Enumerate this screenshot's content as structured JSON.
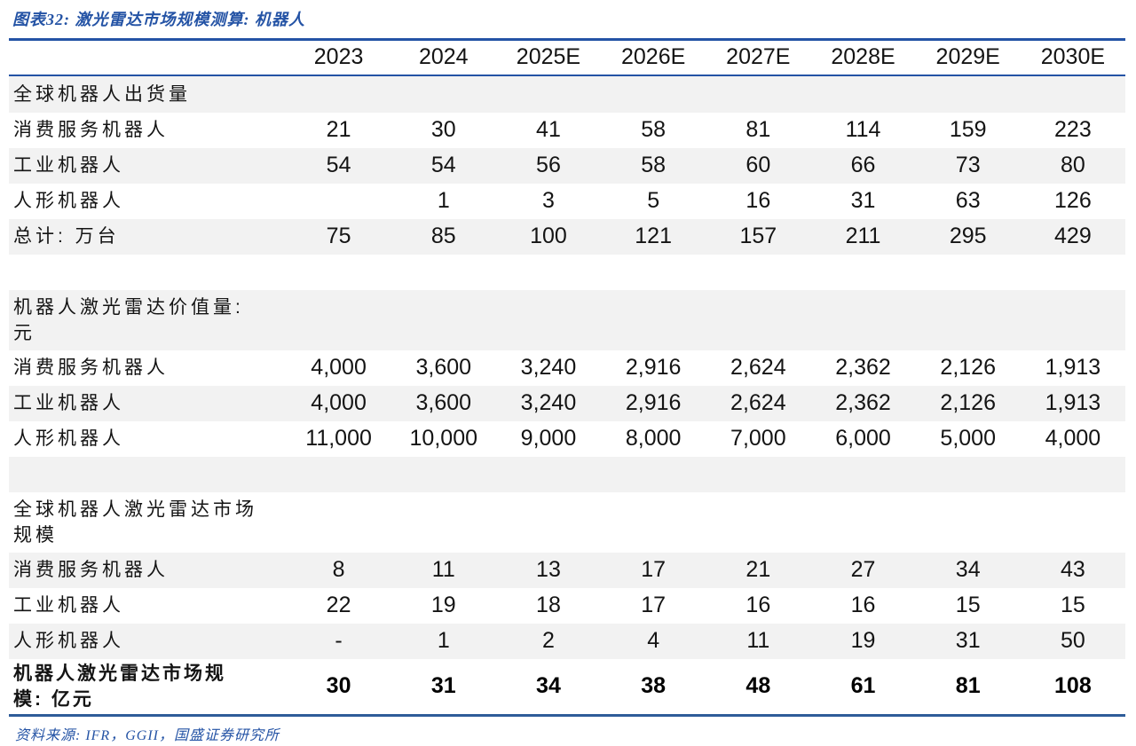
{
  "colors": {
    "accent": "#2453a5",
    "separator_line": "#2e5c99",
    "row_stripe": "#f2f2f2",
    "text": "#141414"
  },
  "figure_title": "图表32: 激光雷达市场规模测算: 机器人",
  "source_note": "资料来源: IFR，GGII，国盛证券研究所",
  "chart_data": {
    "type": "table",
    "title": "激光雷达市场规模测算: 机器人",
    "columns": [
      "",
      "2023",
      "2024",
      "2025E",
      "2026E",
      "2027E",
      "2028E",
      "2029E",
      "2030E"
    ],
    "rows": [
      {
        "kind": "section",
        "label": "全球机器人出货量",
        "values": [
          "",
          "",
          "",
          "",
          "",
          "",
          "",
          ""
        ]
      },
      {
        "kind": "data",
        "label": "消费服务机器人",
        "values": [
          "21",
          "30",
          "41",
          "58",
          "81",
          "114",
          "159",
          "223"
        ]
      },
      {
        "kind": "data",
        "label": "工业机器人",
        "values": [
          "54",
          "54",
          "56",
          "58",
          "60",
          "66",
          "73",
          "80"
        ]
      },
      {
        "kind": "data",
        "label": "人形机器人",
        "values": [
          "",
          "1",
          "3",
          "5",
          "16",
          "31",
          "63",
          "126"
        ]
      },
      {
        "kind": "data",
        "label": "总计: 万台",
        "values": [
          "75",
          "85",
          "100",
          "121",
          "157",
          "211",
          "295",
          "429"
        ]
      },
      {
        "kind": "spacer",
        "label": "",
        "values": [
          "",
          "",
          "",
          "",
          "",
          "",
          "",
          ""
        ]
      },
      {
        "kind": "section",
        "label": "机器人激光雷达价值量:\n元",
        "values": [
          "",
          "",
          "",
          "",
          "",
          "",
          "",
          ""
        ]
      },
      {
        "kind": "data",
        "label": "消费服务机器人",
        "values": [
          "4,000",
          "3,600",
          "3,240",
          "2,916",
          "2,624",
          "2,362",
          "2,126",
          "1,913"
        ]
      },
      {
        "kind": "data",
        "label": "工业机器人",
        "values": [
          "4,000",
          "3,600",
          "3,240",
          "2,916",
          "2,624",
          "2,362",
          "2,126",
          "1,913"
        ]
      },
      {
        "kind": "data",
        "label": "人形机器人",
        "values": [
          "11,000",
          "10,000",
          "9,000",
          "8,000",
          "7,000",
          "6,000",
          "5,000",
          "4,000"
        ]
      },
      {
        "kind": "spacer",
        "label": "",
        "values": [
          "",
          "",
          "",
          "",
          "",
          "",
          "",
          ""
        ]
      },
      {
        "kind": "section",
        "label": "全球机器人激光雷达市场\n规模",
        "values": [
          "",
          "",
          "",
          "",
          "",
          "",
          "",
          ""
        ]
      },
      {
        "kind": "data",
        "label": "消费服务机器人",
        "values": [
          "8",
          "11",
          "13",
          "17",
          "21",
          "27",
          "34",
          "43"
        ]
      },
      {
        "kind": "data",
        "label": "工业机器人",
        "values": [
          "22",
          "19",
          "18",
          "17",
          "16",
          "16",
          "15",
          "15"
        ]
      },
      {
        "kind": "data",
        "label": "人形机器人",
        "values": [
          "-",
          "1",
          "2",
          "4",
          "11",
          "19",
          "31",
          "50"
        ]
      },
      {
        "kind": "total",
        "label": "机器人激光雷达市场规\n模: 亿元",
        "values": [
          "30",
          "31",
          "34",
          "38",
          "48",
          "61",
          "81",
          "108"
        ]
      }
    ]
  }
}
